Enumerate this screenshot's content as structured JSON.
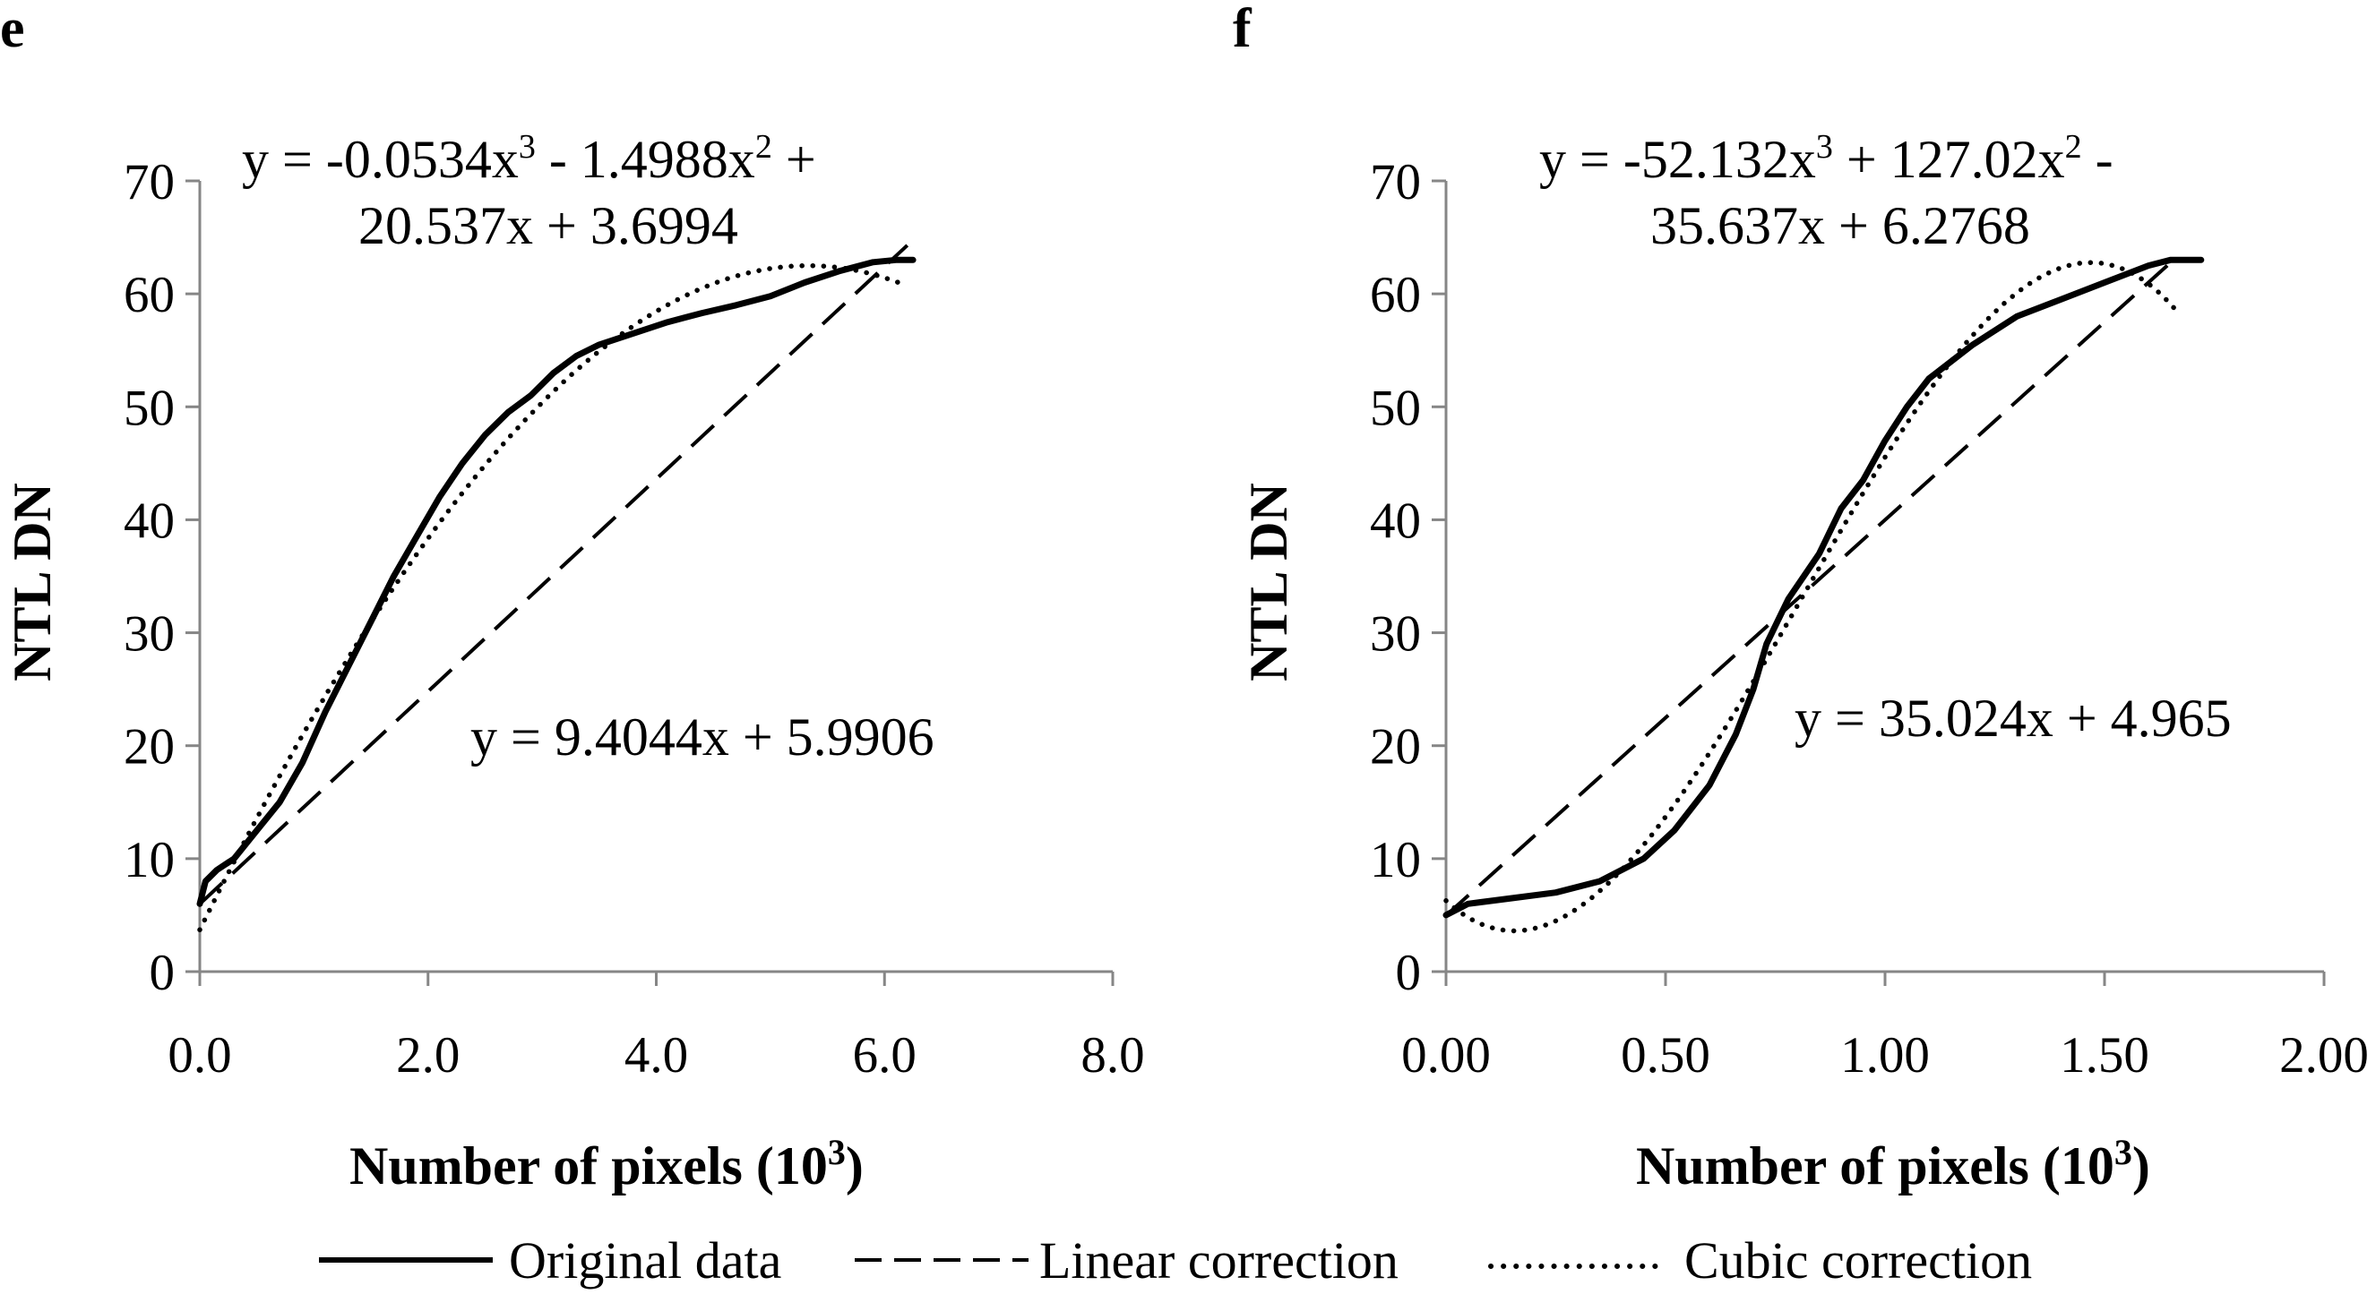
{
  "figure": {
    "legend": [
      {
        "label": "Original data",
        "style": "solid"
      },
      {
        "label": "Linear correction",
        "style": "dashed"
      },
      {
        "label": "Cubic correction",
        "style": "dotted"
      }
    ]
  },
  "chart_data": [
    {
      "panel": "e",
      "type": "line",
      "xlabel": "Number of pixels (10",
      "xlabel_sup": "3",
      "xlabel_end": ")",
      "ylabel": "NTL DN",
      "xlim": [
        0,
        8
      ],
      "ylim": [
        0,
        70
      ],
      "x_ticks": [
        0,
        2,
        4,
        6,
        8
      ],
      "x_tick_labels": [
        "0.0",
        "2.0",
        "4.0",
        "6.0",
        "8.0"
      ],
      "y_ticks": [
        0,
        10,
        20,
        30,
        40,
        50,
        60,
        70
      ],
      "y_tick_labels": [
        "0",
        "10",
        "20",
        "30",
        "40",
        "50",
        "60",
        "70"
      ],
      "cubic_equation": {
        "line1_parts": [
          "y = -0.0534x",
          "3",
          " - 1.4988x",
          "2",
          " +"
        ],
        "line2": "20.537x + 3.6994",
        "coefficients": [
          -0.0534,
          -1.4988,
          20.537,
          3.6994
        ],
        "x_range": [
          0,
          6.2
        ]
      },
      "linear_equation": {
        "text": "y = 9.4044x + 5.9906",
        "slope": 9.4044,
        "intercept": 5.9906,
        "x_range": [
          0,
          6.2
        ]
      },
      "series": [
        {
          "name": "Original data",
          "x": [
            0.0,
            0.05,
            0.15,
            0.3,
            0.5,
            0.7,
            0.9,
            1.1,
            1.3,
            1.5,
            1.7,
            1.9,
            2.1,
            2.3,
            2.5,
            2.7,
            2.9,
            3.1,
            3.3,
            3.5,
            3.8,
            4.1,
            4.4,
            4.7,
            5.0,
            5.3,
            5.6,
            5.9,
            6.1,
            6.25
          ],
          "y": [
            6.0,
            8.0,
            9.0,
            10.0,
            12.5,
            15.0,
            18.5,
            23.0,
            27.0,
            31.0,
            35.0,
            38.5,
            42.0,
            45.0,
            47.5,
            49.5,
            51.0,
            53.0,
            54.5,
            55.5,
            56.5,
            57.5,
            58.3,
            59.0,
            59.8,
            61.0,
            62.0,
            62.8,
            63.0,
            63.0
          ]
        }
      ]
    },
    {
      "panel": "f",
      "type": "line",
      "xlabel": "Number of pixels (10",
      "xlabel_sup": "3",
      "xlabel_end": ")",
      "ylabel": "NTL DN",
      "xlim": [
        0,
        2
      ],
      "ylim": [
        0,
        70
      ],
      "x_ticks": [
        0,
        0.5,
        1,
        1.5,
        2
      ],
      "x_tick_labels": [
        "0.00",
        "0.50",
        "1.00",
        "1.50",
        "2.00"
      ],
      "y_ticks": [
        0,
        10,
        20,
        30,
        40,
        50,
        60,
        70
      ],
      "y_tick_labels": [
        "0",
        "10",
        "20",
        "30",
        "40",
        "50",
        "60",
        "70"
      ],
      "cubic_equation": {
        "line1_parts": [
          "y = -52.132x",
          "3",
          " + 127.02x",
          "2",
          " -"
        ],
        "line2": "35.637x + 6.2768",
        "coefficients": [
          -52.132,
          127.02,
          -35.637,
          6.2768
        ],
        "x_range": [
          0,
          1.66
        ]
      },
      "linear_equation": {
        "text": "y = 35.024x + 4.965",
        "slope": 35.024,
        "intercept": 4.965,
        "x_range": [
          0,
          1.65
        ]
      },
      "series": [
        {
          "name": "Original data",
          "x": [
            0.0,
            0.05,
            0.15,
            0.25,
            0.35,
            0.45,
            0.52,
            0.6,
            0.66,
            0.7,
            0.73,
            0.78,
            0.85,
            0.9,
            0.95,
            1.0,
            1.05,
            1.1,
            1.2,
            1.3,
            1.4,
            1.5,
            1.6,
            1.65,
            1.72
          ],
          "y": [
            5.0,
            6.0,
            6.5,
            7.0,
            8.0,
            10.0,
            12.5,
            16.5,
            21.0,
            25.0,
            29.0,
            33.0,
            37.0,
            41.0,
            43.5,
            47.0,
            50.0,
            52.5,
            55.5,
            58.0,
            59.5,
            61.0,
            62.5,
            63.0,
            63.0
          ]
        }
      ]
    }
  ]
}
